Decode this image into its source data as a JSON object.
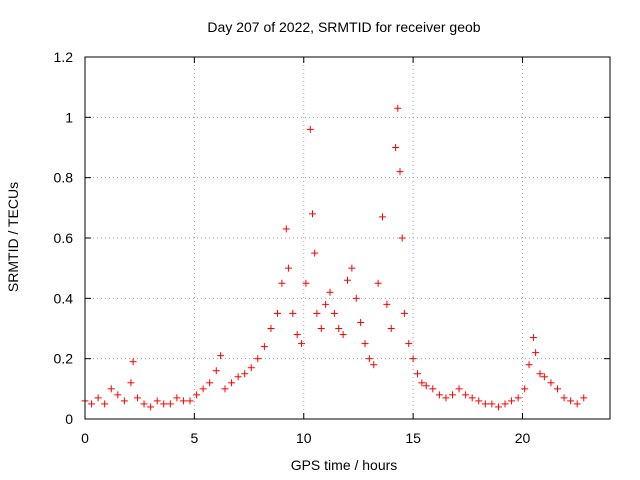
{
  "chart_data": {
    "type": "scatter",
    "title": "Day 207 of 2022, SRMTID for receiver geob",
    "xlabel": "GPS time / hours",
    "ylabel": "SRMTID / TECUs",
    "xlim": [
      0,
      24
    ],
    "ylim": [
      0,
      1.2
    ],
    "grid": true,
    "x_ticks": [
      "0",
      "5",
      "10",
      "15",
      "20"
    ],
    "y_ticks": [
      "0",
      "0.2",
      "0.4",
      "0.6",
      "0.8",
      "1",
      "1.2"
    ],
    "marker": "+",
    "color": "#ff0000",
    "series": [
      {
        "name": "SRMTID",
        "x": [
          0.0,
          0.3,
          0.6,
          0.9,
          1.2,
          1.5,
          1.8,
          2.1,
          2.2,
          2.4,
          2.7,
          3.0,
          3.3,
          3.6,
          3.9,
          4.2,
          4.5,
          4.8,
          5.1,
          5.4,
          5.7,
          6.0,
          6.2,
          6.4,
          6.7,
          7.0,
          7.3,
          7.6,
          7.9,
          8.2,
          8.5,
          8.8,
          9.0,
          9.2,
          9.3,
          9.5,
          9.7,
          9.9,
          10.1,
          10.3,
          10.4,
          10.5,
          10.6,
          10.8,
          11.0,
          11.2,
          11.4,
          11.6,
          11.8,
          12.0,
          12.2,
          12.4,
          12.6,
          12.8,
          13.0,
          13.2,
          13.4,
          13.6,
          13.8,
          14.0,
          14.2,
          14.3,
          14.4,
          14.5,
          14.6,
          14.8,
          15.0,
          15.2,
          15.4,
          15.6,
          15.9,
          16.2,
          16.5,
          16.8,
          17.1,
          17.4,
          17.7,
          18.0,
          18.3,
          18.6,
          18.9,
          19.2,
          19.5,
          19.8,
          20.1,
          20.3,
          20.5,
          20.6,
          20.8,
          21.0,
          21.3,
          21.6,
          21.9,
          22.2,
          22.5,
          22.8
        ],
        "y": [
          0.06,
          0.05,
          0.07,
          0.05,
          0.1,
          0.08,
          0.06,
          0.12,
          0.19,
          0.07,
          0.05,
          0.04,
          0.06,
          0.05,
          0.05,
          0.07,
          0.06,
          0.06,
          0.08,
          0.1,
          0.12,
          0.16,
          0.21,
          0.1,
          0.12,
          0.14,
          0.15,
          0.17,
          0.2,
          0.24,
          0.3,
          0.35,
          0.45,
          0.63,
          0.5,
          0.35,
          0.28,
          0.25,
          0.45,
          0.96,
          0.68,
          0.55,
          0.35,
          0.3,
          0.38,
          0.42,
          0.35,
          0.3,
          0.28,
          0.46,
          0.5,
          0.4,
          0.32,
          0.25,
          0.2,
          0.18,
          0.45,
          0.67,
          0.38,
          0.3,
          0.9,
          1.03,
          0.82,
          0.6,
          0.35,
          0.25,
          0.2,
          0.15,
          0.12,
          0.11,
          0.1,
          0.08,
          0.07,
          0.08,
          0.1,
          0.08,
          0.07,
          0.06,
          0.05,
          0.05,
          0.04,
          0.05,
          0.06,
          0.07,
          0.1,
          0.18,
          0.27,
          0.22,
          0.15,
          0.14,
          0.12,
          0.1,
          0.07,
          0.06,
          0.05,
          0.07
        ]
      }
    ]
  }
}
